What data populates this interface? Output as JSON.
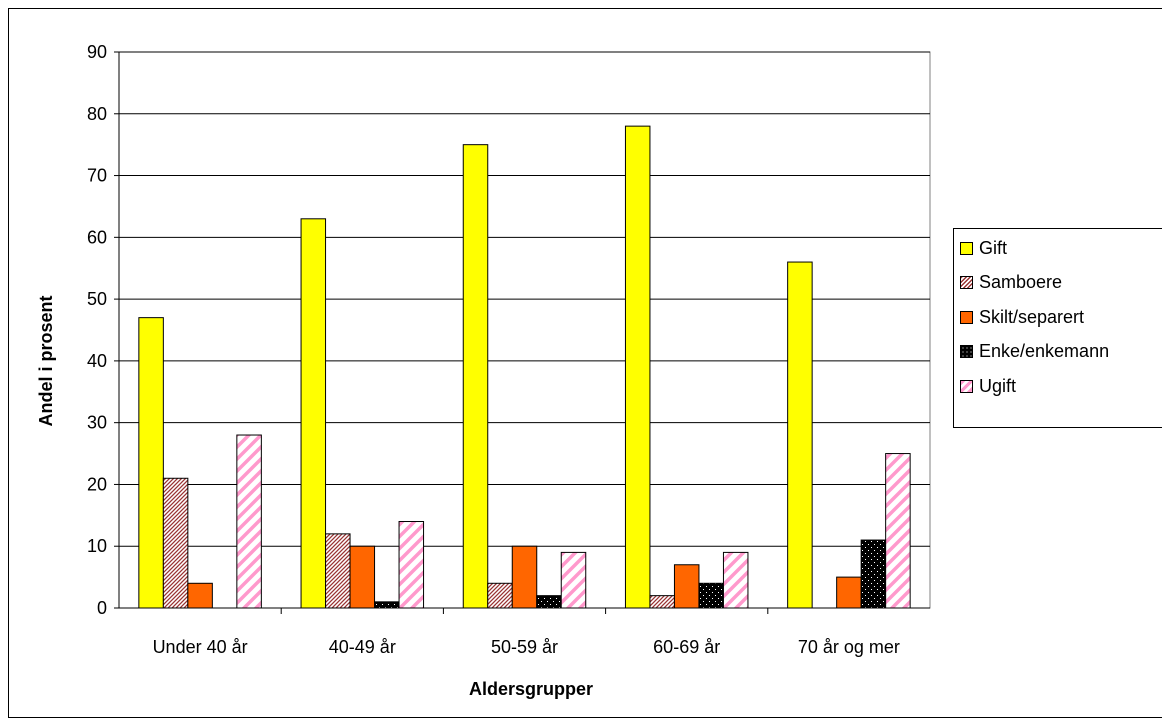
{
  "chart_data": {
    "type": "bar",
    "xlabel": "Aldersgrupper",
    "ylabel": "Andel i prosent",
    "ylim": [
      0,
      90
    ],
    "yticks": [
      "0",
      "10",
      "20",
      "30",
      "40",
      "50",
      "60",
      "70",
      "80",
      "90"
    ],
    "grid": true,
    "legend_position": "right",
    "categories": [
      "Under 40 år",
      "40-49 år",
      "50-59 år",
      "60-69 år",
      "70 år og mer"
    ],
    "series": [
      {
        "name": "Gift",
        "color": "#FFFF00",
        "pattern": "solid",
        "values": [
          47,
          63,
          75,
          78,
          56
        ]
      },
      {
        "name": "Samboere",
        "color": "#993333",
        "pattern": "hatch-dense",
        "values": [
          21,
          12,
          4,
          2,
          0
        ]
      },
      {
        "name": "Skilt/separert",
        "color": "#FF6600",
        "pattern": "solid",
        "values": [
          4,
          10,
          10,
          7,
          5
        ]
      },
      {
        "name": "Enke/enkemann",
        "color": "#000000",
        "pattern": "dots",
        "values": [
          0,
          1,
          2,
          4,
          11
        ]
      },
      {
        "name": "Ugift",
        "color": "#FF99CC",
        "pattern": "stripe-wide",
        "values": [
          28,
          14,
          9,
          9,
          25
        ]
      }
    ]
  }
}
